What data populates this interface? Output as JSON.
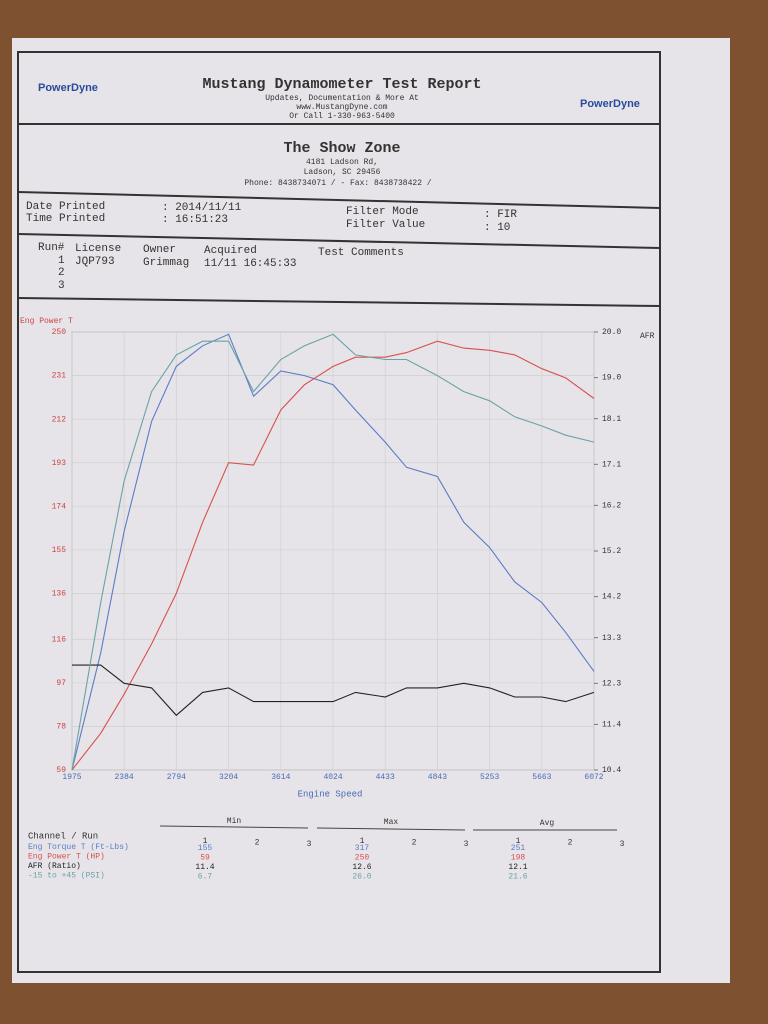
{
  "header": {
    "logo": "PowerDyne",
    "title": "Mustang Dynamometer Test Report",
    "lines": [
      "Updates, Documentation & More At",
      "www.MustangDyne.com",
      "Or Call 1-330-963-5400"
    ]
  },
  "shop": {
    "name": "The Show Zone",
    "lines": [
      "4181 Ladson Rd,",
      "Ladson, SC  29456",
      "Phone: 8438734071 /  - Fax: 8438738422 /"
    ]
  },
  "info": {
    "date_label": "Date Printed",
    "date": ": 2014/11/11",
    "time_label": "Time Printed",
    "time": ": 16:51:23",
    "filter_mode_label": "Filter Mode",
    "filter_mode": ": FIR",
    "filter_value_label": "Filter Value",
    "filter_value": ": 10"
  },
  "runs": {
    "headers": [
      "Run#",
      "License",
      "Owner",
      "Acquired",
      "Test Comments"
    ],
    "rows": [
      {
        "run": "1",
        "license": "JQP793",
        "owner": "Grimmag",
        "acquired": "11/11 16:45:33"
      },
      {
        "run": "2"
      },
      {
        "run": "3"
      }
    ]
  },
  "chart_data": {
    "type": "line",
    "y_label": "Eng Power T",
    "y2_label": "AFR",
    "x_label": "Engine Speed",
    "x": [
      1975,
      2200,
      2384,
      2600,
      2794,
      3000,
      3204,
      3400,
      3614,
      3800,
      4024,
      4200,
      4433,
      4600,
      4843,
      5050,
      5253,
      5450,
      5663,
      5850,
      6072
    ],
    "xlim": [
      1975,
      6072
    ],
    "xticks": [
      1975,
      2384,
      2794,
      3204,
      3614,
      4024,
      4433,
      4843,
      5253,
      5663,
      6072
    ],
    "ylim": [
      59,
      250
    ],
    "yticks": [
      59,
      78,
      97,
      116,
      136,
      155,
      174,
      193,
      212,
      231,
      250
    ],
    "y2lim": [
      10.4,
      20.0
    ],
    "y2ticks": [
      10.4,
      11.4,
      12.3,
      13.3,
      14.2,
      15.2,
      16.2,
      17.1,
      18.1,
      {
        "value": 19.0,
        "label": "19.0"
      },
      {
        "value": 20.0,
        "label": "20.0"
      }
    ],
    "grid": true,
    "series": [
      {
        "name": "Eng Torque T (Ft-Lbs)",
        "color": "#5a7cc8",
        "values": [
          59,
          110,
          163,
          211,
          235,
          244,
          249,
          222,
          233,
          231,
          227,
          216,
          202,
          191,
          187,
          167,
          156,
          141,
          132,
          119,
          102
        ]
      },
      {
        "name": "Eng Power T (HP)",
        "color": "#d8504c",
        "values": [
          59,
          75,
          92,
          114,
          136,
          167,
          193,
          192,
          216,
          227,
          235,
          239,
          239,
          241,
          246,
          243,
          242,
          240,
          234,
          230,
          221
        ]
      },
      {
        "name": "AFR (Ratio)",
        "color": "#222222",
        "axis": "y2",
        "values": [
          12.7,
          12.7,
          12.3,
          12.2,
          11.6,
          12.1,
          12.2,
          11.9,
          11.9,
          11.9,
          11.9,
          12.1,
          12.0,
          12.2,
          12.2,
          12.3,
          12.2,
          12.0,
          12.0,
          11.9,
          12.1
        ]
      },
      {
        "name": "-15 to +45 (PSI)",
        "color": "#6aa3a6",
        "values": [
          59,
          132,
          185,
          224,
          240,
          246,
          246,
          224,
          238,
          244,
          249,
          240,
          238,
          238,
          231,
          224,
          220,
          213,
          209,
          205,
          202
        ]
      }
    ]
  },
  "table": {
    "channel_header": "Channel / Run",
    "groups": [
      "Min",
      "Max",
      "Avg"
    ],
    "runs": [
      "1",
      "2",
      "3"
    ],
    "rows": [
      [
        "155",
        "317",
        "251"
      ],
      [
        "59",
        "250",
        "198"
      ],
      [
        "11.4",
        "12.6",
        "12.1"
      ],
      [
        "6.7",
        "26.0",
        "21.6"
      ]
    ]
  }
}
